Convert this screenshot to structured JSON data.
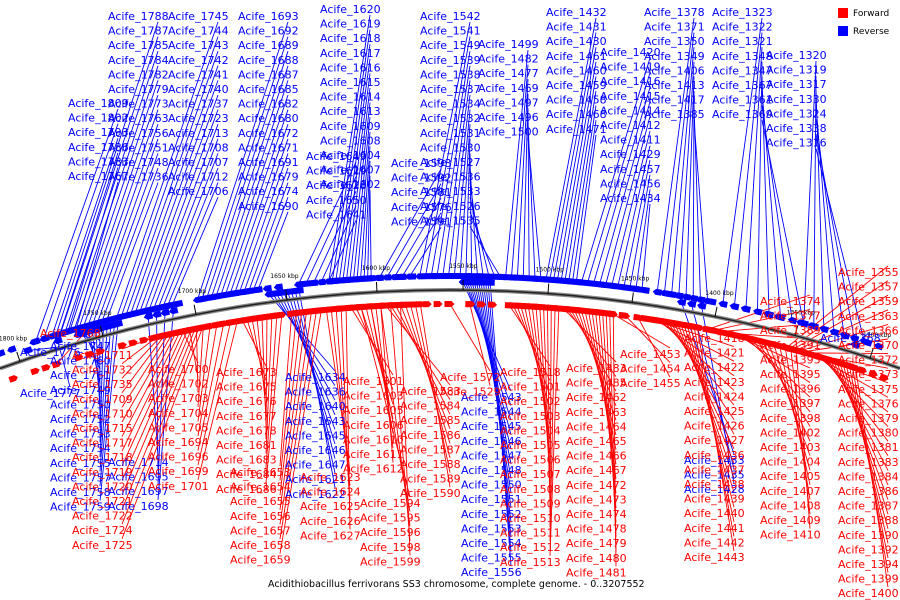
{
  "caption": "Acidithiobacillus ferrivorans SS3 chromosome, complete genome. - 0..3207552",
  "legend": [
    {
      "label": "Forward",
      "color": "#ff0000"
    },
    {
      "label": "Reverse",
      "color": "#0000ff"
    }
  ],
  "ticks": [
    "1300 kbp",
    "1350 kbp",
    "1400 kbp",
    "1450 kbp",
    "1500 kbp",
    "1550 kbp",
    "1600 kbp",
    "1650 kbp",
    "1700 kbp",
    "1750 kbp",
    "1800 kbp"
  ],
  "reverse_genes": {
    "columns": [
      [
        "Acife_1788",
        "Acife_1787",
        "Acife_1785",
        "Acife_1784",
        "Acife_1782",
        "Acife_1779",
        "Acife_1773",
        "Acife_1763",
        "Acife_1756",
        "Acife_1751",
        "Acife_1748",
        "Acife_1736"
      ],
      [
        "Acife_1809",
        "Acife_1802",
        "Acife_1793",
        "Acife_1786",
        "Acife_1783",
        "Acife_1767"
      ],
      [
        "Acife_1745",
        "Acife_1744",
        "Acife_1743",
        "Acife_1742",
        "Acife_1741",
        "Acife_1740",
        "Acife_1737",
        "Acife_1723",
        "Acife_1713",
        "Acife_1708",
        "Acife_1707",
        "Acife_1712",
        "Acife_1706"
      ],
      [
        "Acife_1693",
        "Acife_1692",
        "Acife_1689",
        "Acife_1688",
        "Acife_1687",
        "Acife_1685",
        "Acife_1682",
        "Acife_1680",
        "Acife_1672",
        "Acife_1671",
        "Acife_1691",
        "Acife_1679",
        "Acife_1674",
        "Acife_1690"
      ],
      [
        "Acife_1649",
        "Acife_1629",
        "Acife_1628",
        "Acife_1650",
        "Acife_1641"
      ],
      [
        "Acife_1620",
        "Acife_1619",
        "Acife_1618",
        "Acife_1617",
        "Acife_1616",
        "Acife_1615",
        "Acife_1614",
        "Acife_1613",
        "Acife_1609",
        "Acife_1608",
        "Acife_1604",
        "Acife_1607",
        "Acife_1602"
      ],
      [
        "Acife_1593",
        "Acife_1592",
        "Acife_1581",
        "Acife_1576",
        "Acife_1591"
      ],
      [
        "Acife_1542",
        "Acife_1541",
        "Acife_1549",
        "Acife_1539",
        "Acife_1538",
        "Acife_1537",
        "Acife_1534",
        "Acife_1532",
        "Acife_1531",
        "Acife_1530",
        "Acife_1527",
        "Acife_1536",
        "Acife_1533",
        "Acife_1526",
        "Acife_1535"
      ],
      [
        "Acife_1499",
        "Acife_1482",
        "Acife_1477",
        "Acife_1469",
        "Acife_1497",
        "Acife_1496",
        "Acife_1500"
      ],
      [
        "Acife_1432",
        "Acife_1431",
        "Acife_1430",
        "Acife_1461",
        "Acife_1460",
        "Acife_1459",
        "Acife_1458",
        "Acife_1468",
        "Acife_1471"
      ],
      [
        "Acife_1420",
        "Acife_1419",
        "Acife_1416",
        "Acife_1415",
        "Acife_1414",
        "Acife_1412",
        "Acife_1411",
        "Acife_1429",
        "Acife_1457",
        "Acife_1456",
        "Acife_1434"
      ],
      [
        "Acife_1378",
        "Acife_1371",
        "Acife_1350",
        "Acife_1349",
        "Acife_1406",
        "Acife_1413",
        "Acife_1417",
        "Acife_1385"
      ],
      [
        "Acife_1323",
        "Acife_1322",
        "Acife_1321",
        "Acife_1348",
        "Acife_1347",
        "Acife_1367",
        "Acife_1361",
        "Acife_1369"
      ],
      [
        "Acife_1320",
        "Acife_1319",
        "Acife_1317",
        "Acife_1330",
        "Acife_1324",
        "Acife_1338",
        "Acife_1316"
      ],
      [
        "Acife_1747",
        "Acife_1760",
        "Acife_1761",
        "Acife_1749",
        "Acife_1750",
        "Acife_1752",
        "Acife_1753",
        "Acife_1754",
        "Acife_1755",
        "Acife_1757",
        "Acife_1758",
        "Acife_1759"
      ],
      [
        "Acife_1776",
        "Acife_1777"
      ],
      [
        "Acife_1714",
        "Acife_1695",
        "Acife_1697",
        "Acife_1698"
      ],
      [
        "Acife_1634",
        "Acife_1636",
        "Acife_1640",
        "Acife_1643",
        "Acife_1645",
        "Acife_1646",
        "Acife_1647",
        "Acife_1621",
        "Acife_1622"
      ],
      [
        "Acife_1543",
        "Acife_1544",
        "Acife_1545",
        "Acife_1546",
        "Acife_1547",
        "Acife_1548",
        "Acife_1550",
        "Acife_1551",
        "Acife_1552",
        "Acife_1553",
        "Acife_1554",
        "Acife_1555",
        "Acife_1556"
      ],
      [
        "Acife_1433",
        "Acife_1435",
        "Acife_1428"
      ],
      [
        "Acife_1368"
      ]
    ]
  },
  "forward_genes": {
    "columns": [
      [
        "Acife_1768"
      ],
      [
        "Acife_1711",
        "Acife_1732",
        "Acife_1735",
        "Acife_1709",
        "Acife_1710",
        "Acife_1715",
        "Acife_1717",
        "Acife_1718",
        "Acife_1719",
        "Acife_1720",
        "Acife_1721",
        "Acife_1722",
        "Acife_1724",
        "Acife_1725"
      ],
      [
        "Acife_1700",
        "Acife_1702",
        "Acife_1703",
        "Acife_1704",
        "Acife_1705",
        "Acife_1694",
        "Acife_1696",
        "Acife_1699",
        "Acife_1701"
      ],
      [
        "Acife_1673",
        "Acife_1675",
        "Acife_1676",
        "Acife_1677",
        "Acife_1678",
        "Acife_1681",
        "Acife_1683",
        "Acife_1684",
        "Acife_1686"
      ],
      [
        "Acife_1653",
        "Acife_1654",
        "Acife_1655",
        "Acife_1656",
        "Acife_1657",
        "Acife_1658",
        "Acife_1659"
      ],
      [
        "Acife_1623",
        "Acife_1624",
        "Acife_1625",
        "Acife_1626",
        "Acife_1627"
      ],
      [
        "Acife_1601",
        "Acife_1603",
        "Acife_1605",
        "Acife_1606",
        "Acife_1610",
        "Acife_1611",
        "Acife_1612"
      ],
      [
        "Acife_1583",
        "Acife_1584",
        "Acife_1585",
        "Acife_1586",
        "Acife_1587",
        "Acife_1588",
        "Acife_1589",
        "Acife_1590"
      ],
      [
        "Acife_1594",
        "Acife_1595",
        "Acife_1596",
        "Acife_1598",
        "Acife_1599"
      ],
      [
        "Acife_1572",
        "Acife_1529"
      ],
      [
        "Acife_1518",
        "Acife_1501",
        "Acife_1502",
        "Acife_1503",
        "Acife_1504",
        "Acife_1505",
        "Acife_1506",
        "Acife_1507",
        "Acife_1508",
        "Acife_1509",
        "Acife_1510",
        "Acife_1511",
        "Acife_1512",
        "Acife_1513"
      ],
      [
        "Acife_1483",
        "Acife_1485",
        "Acife_1462",
        "Acife_1463",
        "Acife_1464",
        "Acife_1465",
        "Acife_1466",
        "Acife_1467",
        "Acife_1472",
        "Acife_1473",
        "Acife_1474",
        "Acife_1478",
        "Acife_1479",
        "Acife_1480",
        "Acife_1481"
      ],
      [
        "Acife_1453",
        "Acife_1454",
        "Acife_1455"
      ],
      [
        "Acife_1418",
        "Acife_1421",
        "Acife_1422",
        "Acife_1423",
        "Acife_1424",
        "Acife_1425",
        "Acife_1426",
        "Acife_1427",
        "Acife_1436",
        "Acife_1437",
        "Acife_1438",
        "Acife_1439",
        "Acife_1440",
        "Acife_1441",
        "Acife_1442",
        "Acife_1443"
      ],
      [
        "Acife_1374",
        "Acife_1377",
        "Acife_1389",
        "Acife_1391",
        "Acife_1393",
        "Acife_1395",
        "Acife_1396",
        "Acife_1397",
        "Acife_1398",
        "Acife_1402",
        "Acife_1403",
        "Acife_1404",
        "Acife_1405",
        "Acife_1407",
        "Acife_1408",
        "Acife_1409",
        "Acife_1410"
      ],
      [
        "Acife_1355",
        "Acife_1357",
        "Acife_1359",
        "Acife_1363",
        "Acife_1366",
        "Acife_1370",
        "Acife_1372",
        "Acife_1373",
        "Acife_1375",
        "Acife_1376",
        "Acife_1379",
        "Acife_1380",
        "Acife_1381",
        "Acife_1383",
        "Acife_1384",
        "Acife_1386",
        "Acife_1387",
        "Acife_1388",
        "Acife_1390",
        "Acife_1392",
        "Acife_1394",
        "Acife_1399",
        "Acife_1400"
      ]
    ]
  }
}
